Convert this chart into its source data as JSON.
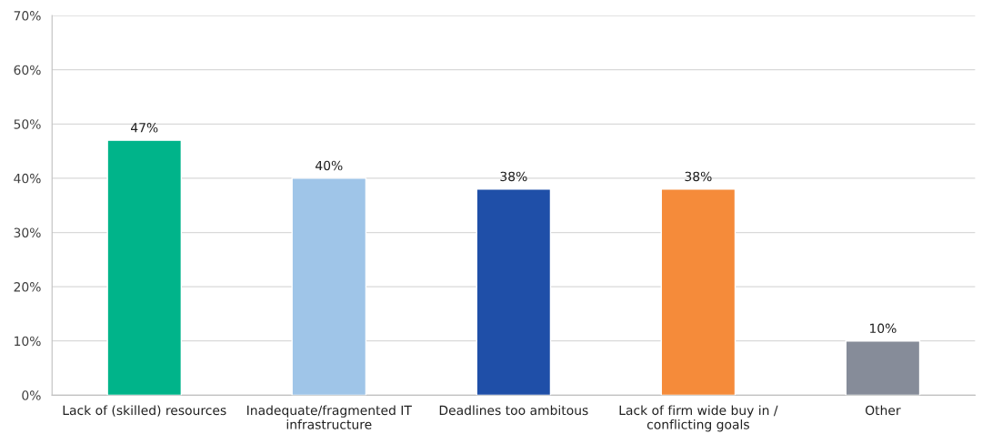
{
  "chart_data": {
    "type": "bar",
    "categories": [
      "Lack of (skilled) resources",
      "Inadequate/fragmented IT\ninfrastructure",
      "Deadlines too ambitous",
      "Lack of firm wide buy in /\nconflicting goals",
      "Other"
    ],
    "values": [
      47,
      40,
      38,
      38,
      10
    ],
    "colors": [
      "#00b48a",
      "#9fc5e8",
      "#1f4fa8",
      "#f58b3a",
      "#868c99"
    ],
    "value_labels": [
      "47%",
      "40%",
      "38%",
      "38%",
      "10%"
    ],
    "ylim": [
      0,
      70
    ],
    "yticks": [
      {
        "value": 0,
        "label": "0%"
      },
      {
        "value": 10,
        "label": "10%"
      },
      {
        "value": 20,
        "label": "20%"
      },
      {
        "value": 30,
        "label": "30%"
      },
      {
        "value": 40,
        "label": "40%"
      },
      {
        "value": 50,
        "label": "50%"
      },
      {
        "value": 60,
        "label": "60%"
      },
      {
        "value": 70,
        "label": "70%"
      }
    ],
    "grid": "y",
    "legend": false
  }
}
